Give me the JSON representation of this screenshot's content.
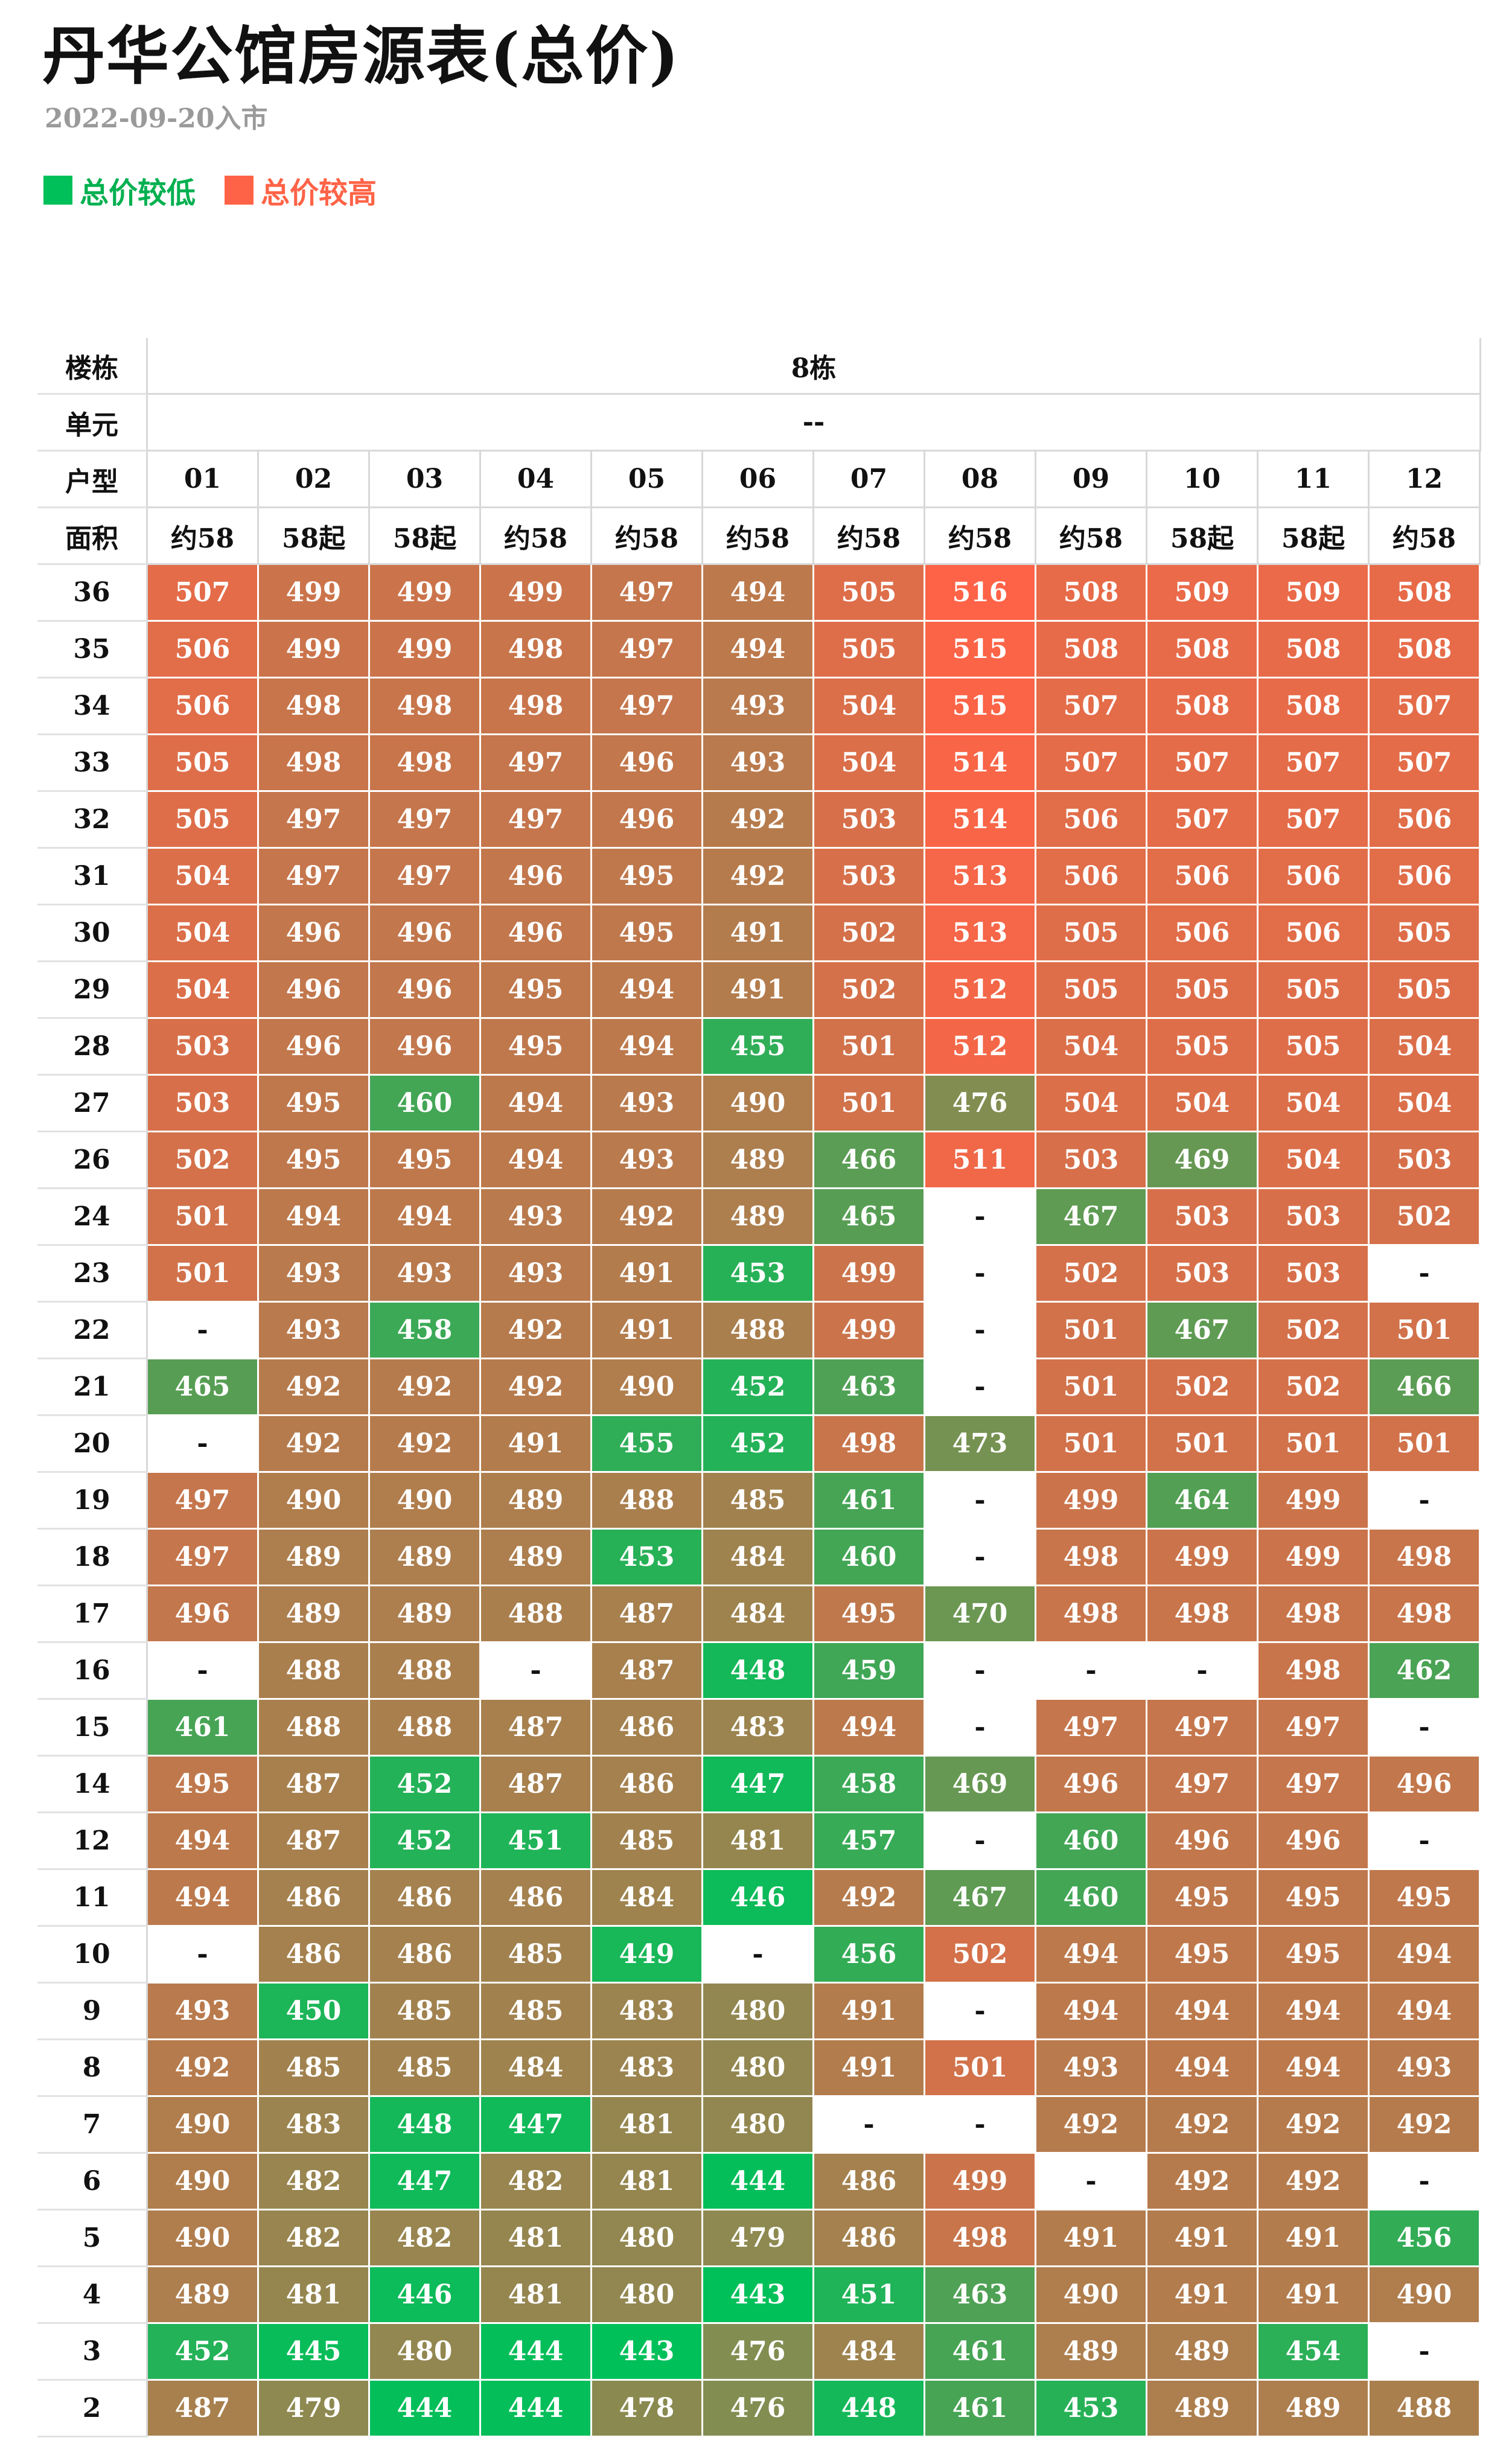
{
  "title": "丹华公馆房源表(总价)",
  "subtitle": "2022-09-20入市",
  "legend": [
    {
      "label": "总价较低",
      "color": "#00c05a"
    },
    {
      "label": "总价较高",
      "color": "#ff6347"
    }
  ],
  "colors": {
    "low": "#00c05a",
    "high": "#ff6347"
  },
  "header": {
    "building_label": "楼栋",
    "building_value": "8栋",
    "unit_label": "单元",
    "unit_value": "--",
    "type_label": "户型",
    "area_label": "面积",
    "types": [
      "01",
      "02",
      "03",
      "04",
      "05",
      "06",
      "07",
      "08",
      "09",
      "10",
      "11",
      "12"
    ],
    "areas": [
      "约58",
      "58起",
      "58起",
      "约58",
      "约58",
      "约58",
      "约58",
      "约58",
      "约58",
      "58起",
      "58起",
      "约58"
    ]
  },
  "rows": [
    {
      "floor": "36",
      "values": [
        "507",
        "499",
        "499",
        "499",
        "497",
        "494",
        "505",
        "516",
        "508",
        "509",
        "509",
        "508"
      ]
    },
    {
      "floor": "35",
      "values": [
        "506",
        "499",
        "499",
        "498",
        "497",
        "494",
        "505",
        "515",
        "508",
        "508",
        "508",
        "508"
      ]
    },
    {
      "floor": "34",
      "values": [
        "506",
        "498",
        "498",
        "498",
        "497",
        "493",
        "504",
        "515",
        "507",
        "508",
        "508",
        "507"
      ]
    },
    {
      "floor": "33",
      "values": [
        "505",
        "498",
        "498",
        "497",
        "496",
        "493",
        "504",
        "514",
        "507",
        "507",
        "507",
        "507"
      ]
    },
    {
      "floor": "32",
      "values": [
        "505",
        "497",
        "497",
        "497",
        "496",
        "492",
        "503",
        "514",
        "506",
        "507",
        "507",
        "506"
      ]
    },
    {
      "floor": "31",
      "values": [
        "504",
        "497",
        "497",
        "496",
        "495",
        "492",
        "503",
        "513",
        "506",
        "506",
        "506",
        "506"
      ]
    },
    {
      "floor": "30",
      "values": [
        "504",
        "496",
        "496",
        "496",
        "495",
        "491",
        "502",
        "513",
        "505",
        "506",
        "506",
        "505"
      ]
    },
    {
      "floor": "29",
      "values": [
        "504",
        "496",
        "496",
        "495",
        "494",
        "491",
        "502",
        "512",
        "505",
        "505",
        "505",
        "505"
      ]
    },
    {
      "floor": "28",
      "values": [
        "503",
        "496",
        "496",
        "495",
        "494",
        "455",
        "501",
        "512",
        "504",
        "505",
        "505",
        "504"
      ]
    },
    {
      "floor": "27",
      "values": [
        "503",
        "495",
        "460",
        "494",
        "493",
        "490",
        "501",
        "476",
        "504",
        "504",
        "504",
        "504"
      ]
    },
    {
      "floor": "26",
      "values": [
        "502",
        "495",
        "495",
        "494",
        "493",
        "489",
        "466",
        "511",
        "503",
        "469",
        "504",
        "503"
      ]
    },
    {
      "floor": "24",
      "values": [
        "501",
        "494",
        "494",
        "493",
        "492",
        "489",
        "465",
        "-",
        "467",
        "503",
        "503",
        "502"
      ]
    },
    {
      "floor": "23",
      "values": [
        "501",
        "493",
        "493",
        "493",
        "491",
        "453",
        "499",
        "-",
        "502",
        "503",
        "503",
        "-"
      ]
    },
    {
      "floor": "22",
      "values": [
        "-",
        "493",
        "458",
        "492",
        "491",
        "488",
        "499",
        "-",
        "501",
        "467",
        "502",
        "501"
      ]
    },
    {
      "floor": "21",
      "values": [
        "465",
        "492",
        "492",
        "492",
        "490",
        "452",
        "463",
        "-",
        "501",
        "502",
        "502",
        "466"
      ]
    },
    {
      "floor": "20",
      "values": [
        "-",
        "492",
        "492",
        "491",
        "455",
        "452",
        "498",
        "473",
        "501",
        "501",
        "501",
        "501"
      ]
    },
    {
      "floor": "19",
      "values": [
        "497",
        "490",
        "490",
        "489",
        "488",
        "485",
        "461",
        "-",
        "499",
        "464",
        "499",
        "-"
      ]
    },
    {
      "floor": "18",
      "values": [
        "497",
        "489",
        "489",
        "489",
        "453",
        "484",
        "460",
        "-",
        "498",
        "499",
        "499",
        "498"
      ]
    },
    {
      "floor": "17",
      "values": [
        "496",
        "489",
        "489",
        "488",
        "487",
        "484",
        "495",
        "470",
        "498",
        "498",
        "498",
        "498"
      ]
    },
    {
      "floor": "16",
      "values": [
        "-",
        "488",
        "488",
        "-",
        "487",
        "448",
        "459",
        "-",
        "-",
        "-",
        "498",
        "462"
      ]
    },
    {
      "floor": "15",
      "values": [
        "461",
        "488",
        "488",
        "487",
        "486",
        "483",
        "494",
        "-",
        "497",
        "497",
        "497",
        "-"
      ]
    },
    {
      "floor": "14",
      "values": [
        "495",
        "487",
        "452",
        "487",
        "486",
        "447",
        "458",
        "469",
        "496",
        "497",
        "497",
        "496"
      ]
    },
    {
      "floor": "12",
      "values": [
        "494",
        "487",
        "452",
        "451",
        "485",
        "481",
        "457",
        "-",
        "460",
        "496",
        "496",
        "-"
      ]
    },
    {
      "floor": "11",
      "values": [
        "494",
        "486",
        "486",
        "486",
        "484",
        "446",
        "492",
        "467",
        "460",
        "495",
        "495",
        "495"
      ]
    },
    {
      "floor": "10",
      "values": [
        "-",
        "486",
        "486",
        "485",
        "449",
        "-",
        "456",
        "502",
        "494",
        "495",
        "495",
        "494"
      ]
    },
    {
      "floor": "9",
      "values": [
        "493",
        "450",
        "485",
        "485",
        "483",
        "480",
        "491",
        "-",
        "494",
        "494",
        "494",
        "494"
      ]
    },
    {
      "floor": "8",
      "values": [
        "492",
        "485",
        "485",
        "484",
        "483",
        "480",
        "491",
        "501",
        "493",
        "494",
        "494",
        "493"
      ]
    },
    {
      "floor": "7",
      "values": [
        "490",
        "483",
        "448",
        "447",
        "481",
        "480",
        "-",
        "-",
        "492",
        "492",
        "492",
        "492"
      ]
    },
    {
      "floor": "6",
      "values": [
        "490",
        "482",
        "447",
        "482",
        "481",
        "444",
        "486",
        "499",
        "-",
        "492",
        "492",
        "-"
      ]
    },
    {
      "floor": "5",
      "values": [
        "490",
        "482",
        "482",
        "481",
        "480",
        "479",
        "486",
        "498",
        "491",
        "491",
        "491",
        "456"
      ]
    },
    {
      "floor": "4",
      "values": [
        "489",
        "481",
        "446",
        "481",
        "480",
        "443",
        "451",
        "463",
        "490",
        "491",
        "491",
        "490"
      ]
    },
    {
      "floor": "3",
      "values": [
        "452",
        "445",
        "480",
        "444",
        "443",
        "476",
        "484",
        "461",
        "489",
        "489",
        "454",
        "-"
      ]
    },
    {
      "floor": "2",
      "values": [
        "487",
        "479",
        "444",
        "444",
        "478",
        "476",
        "448",
        "461",
        "453",
        "489",
        "489",
        "488"
      ]
    }
  ]
}
